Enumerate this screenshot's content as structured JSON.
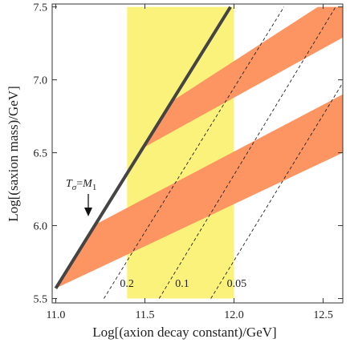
{
  "chart_data": {
    "type": "line",
    "xlabel": "Log[(axion decay constant)/GeV]",
    "ylabel": "Log[(saxion mass)/GeV]",
    "xlim": [
      10.98,
      12.61
    ],
    "ylim": [
      5.47,
      7.52
    ],
    "xticks": [
      {
        "value": 11,
        "label": "11.0"
      },
      11.5,
      {
        "value": 12,
        "label": "12.0"
      },
      12.5
    ],
    "yticks": [
      5.5,
      {
        "value": 6,
        "label": "6.0"
      },
      6.5,
      {
        "value": 7,
        "label": "7.0"
      },
      7.5
    ],
    "regions": [
      {
        "color": "#fbf27c",
        "x": [
          11.4,
          12.0,
          12.0,
          11.4
        ],
        "values": [
          5.5,
          5.5,
          7.5,
          7.5
        ]
      },
      {
        "color": "#fd9563",
        "x": [
          11.0,
          12.61,
          12.61,
          11.21
        ],
        "values": [
          5.57,
          6.5,
          6.9,
          6.0
        ]
      },
      {
        "color": "#fd9563",
        "x": [
          11.47,
          12.61,
          12.61,
          12.47,
          11.66
        ],
        "values": [
          6.52,
          7.29,
          7.5,
          7.5,
          6.86
        ]
      }
    ],
    "contours": [
      {
        "name": "0.2",
        "x": [
          11.27,
          12.28
        ],
        "values": [
          5.5,
          7.5
        ]
      },
      {
        "name": "0.1",
        "x": [
          11.58,
          12.57
        ],
        "values": [
          5.5,
          7.5
        ]
      },
      {
        "name": "0.05",
        "x": [
          11.87,
          12.61
        ],
        "values": [
          5.5,
          6.98
        ]
      }
    ],
    "series": [
      {
        "color": "#444444",
        "x": [
          11.0,
          11.98
        ],
        "values": [
          5.57,
          7.5
        ]
      }
    ],
    "annotation": [
      "T",
      "σ",
      "=",
      "M",
      "1"
    ]
  }
}
